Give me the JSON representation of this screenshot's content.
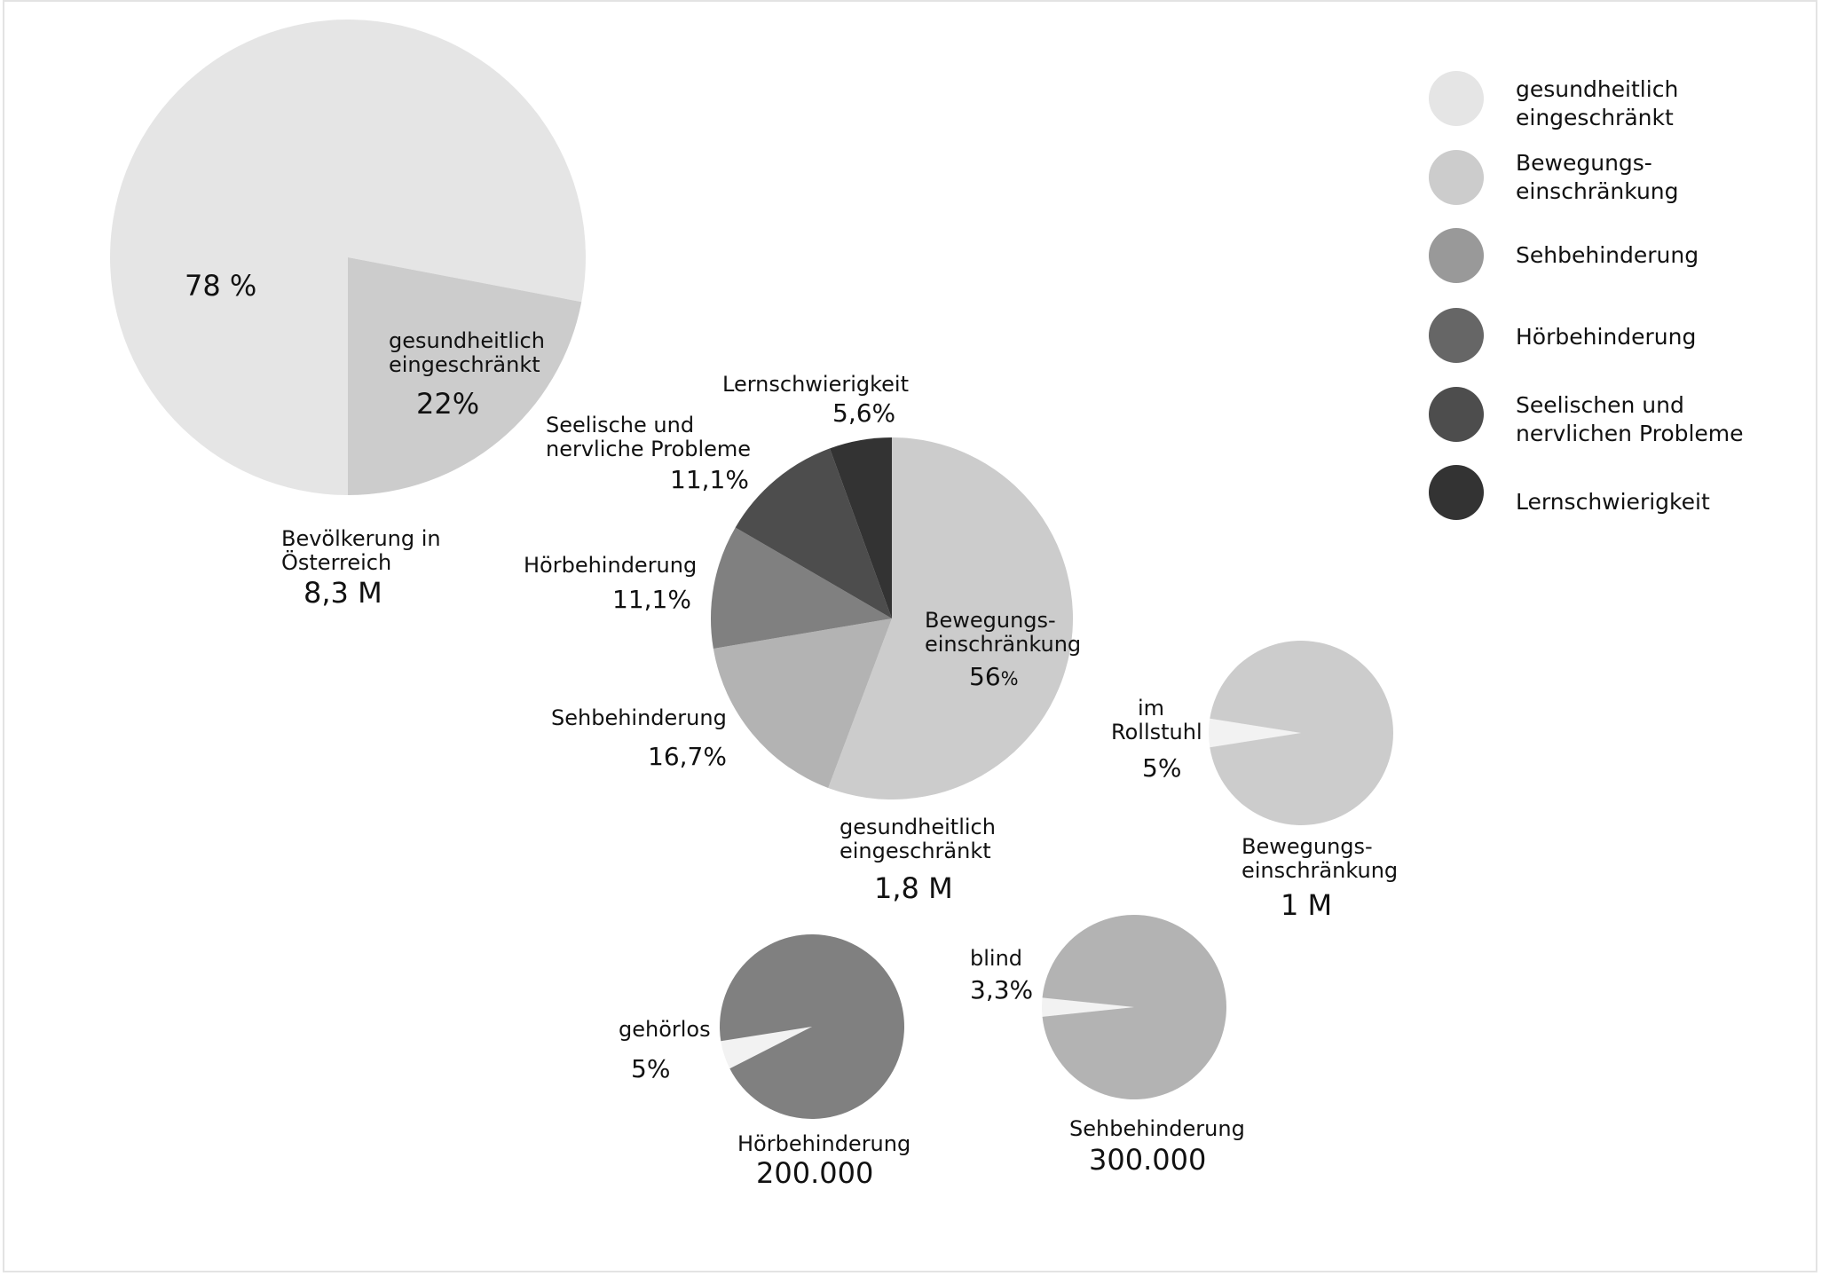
{
  "chart_data": [
    {
      "type": "pie",
      "id": "population",
      "slices": [
        {
          "label": "",
          "value": 78,
          "value_label": "78 %",
          "color": "#e5e5e5"
        },
        {
          "label": "gesundheitlich eingeschränkt",
          "value": 22,
          "value_label": "22%",
          "color": "#cccccc"
        }
      ],
      "total_label": "Bevölkerung in Österreich",
      "total_value": "8,3 M"
    },
    {
      "type": "pie",
      "id": "impaired",
      "slices": [
        {
          "label": "Bewegungs-einschränkung",
          "value": 56,
          "value_label": "56%",
          "color": "#cccccc"
        },
        {
          "label": "Sehbehinderung",
          "value": 16.7,
          "value_label": "16,7%",
          "color": "#b3b3b3"
        },
        {
          "label": "Hörbehinderung",
          "value": 11.1,
          "value_label": "11,1%",
          "color": "#808080"
        },
        {
          "label": "Seelische und nervliche Probleme",
          "value": 11.1,
          "value_label": "11,1%",
          "color": "#4d4d4d"
        },
        {
          "label": "Lernschwierigkeit",
          "value": 5.6,
          "value_label": "5,6%",
          "color": "#333333"
        }
      ],
      "total_label": "gesundheitlich eingeschränkt",
      "total_value": "1,8 M"
    },
    {
      "type": "pie",
      "id": "mobility",
      "slices": [
        {
          "label": "im Rollstuhl",
          "value": 5,
          "value_label": "5%",
          "color": "#f2f2f2"
        },
        {
          "label": "",
          "value": 95,
          "value_label": "",
          "color": "#cccccc"
        }
      ],
      "total_label": "Bewegungs-einschränkung",
      "total_value": "1 M"
    },
    {
      "type": "pie",
      "id": "hearing",
      "slices": [
        {
          "label": "gehörlos",
          "value": 5,
          "value_label": "5%",
          "color": "#f2f2f2"
        },
        {
          "label": "",
          "value": 95,
          "value_label": "",
          "color": "#808080"
        }
      ],
      "total_label": "Hörbehinderung",
      "total_value": "200.000"
    },
    {
      "type": "pie",
      "id": "vision",
      "slices": [
        {
          "label": "blind",
          "value": 3.3,
          "value_label": "3,3%",
          "color": "#f2f2f2"
        },
        {
          "label": "",
          "value": 96.7,
          "value_label": "",
          "color": "#b3b3b3"
        }
      ],
      "total_label": "Sehbehinderung",
      "total_value": "300.000"
    }
  ],
  "legend": {
    "placement": "top-right",
    "items": [
      {
        "label_lines": [
          "gesundheitlich",
          "eingeschränkt"
        ],
        "color": "#e5e5e5"
      },
      {
        "label_lines": [
          "Bewegungs-",
          "einschränkung"
        ],
        "color": "#cccccc"
      },
      {
        "label_lines": [
          "Sehbehinderung"
        ],
        "color": "#999999"
      },
      {
        "label_lines": [
          "Hörbehinderung"
        ],
        "color": "#666666"
      },
      {
        "label_lines": [
          "Seelischen und",
          "nervlichen Probleme"
        ],
        "color": "#4d4d4d"
      },
      {
        "label_lines": [
          "Lernschwierigkeit"
        ],
        "color": "#333333"
      }
    ]
  },
  "labels": {
    "population": {
      "main_value": "78 %",
      "slice_label_1": "gesundheitlich",
      "slice_label_2": "eingeschränkt",
      "slice_value": "22%",
      "total_1": "Bevölkerung in",
      "total_2": "Österreich",
      "total_value": "8,3 M"
    },
    "impaired": {
      "lern_label": "Lernschwierigkeit",
      "lern_value": "5,6%",
      "seel_label_1": "Seelische und",
      "seel_label_2": "nervliche Probleme",
      "seel_value": "11,1%",
      "hoer_label": "Hörbehinderung",
      "hoer_value": "11,1%",
      "seh_label": "Sehbehinderung",
      "seh_value": "16,7%",
      "bew_label_1": "Bewegungs-",
      "bew_label_2": "einschränkung",
      "bew_value": "56",
      "bew_unit": "%",
      "total_1": "gesundheitlich",
      "total_2": "eingeschränkt",
      "total_value": "1,8 M"
    },
    "mobility": {
      "slice_label_1": "im",
      "slice_label_2": "Rollstuhl",
      "slice_value": "5%",
      "total_1": "Bewegungs-",
      "total_2": "einschränkung",
      "total_value": "1 M"
    },
    "hearing": {
      "slice_label": "gehörlos",
      "slice_value": "5%",
      "total_1": "Hörbehinderung",
      "total_value": "200.000"
    },
    "vision": {
      "slice_label": "blind",
      "slice_value": "3,3%",
      "total_1": "Sehbehinderung",
      "total_value": "300.000"
    }
  }
}
